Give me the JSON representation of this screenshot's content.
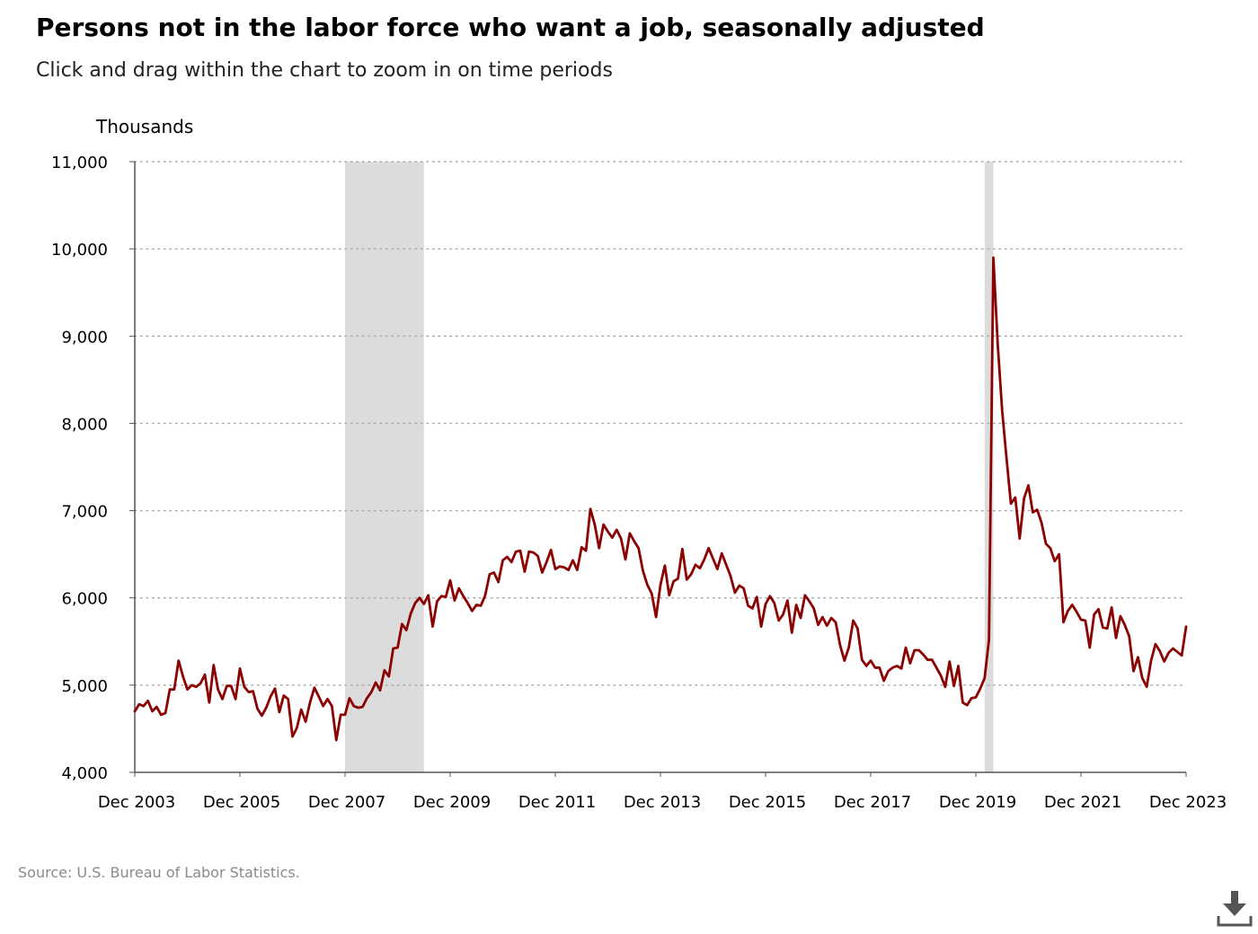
{
  "header": {
    "title": "Persons not in the labor force who want a job, seasonally adjusted",
    "subtitle": "Click and drag within the chart to zoom in on time periods"
  },
  "footer": {
    "source": "Source: U.S. Bureau of Labor Statistics."
  },
  "download_icon": "download-icon",
  "colors": {
    "line": "#8b0000",
    "recession": "#dcdcdc",
    "grid": "#aaaaaa",
    "axis": "#555555"
  },
  "chart_data": {
    "type": "line",
    "title": "Persons not in the labor force who want a job, seasonally adjusted",
    "ylabel": "Thousands",
    "xlabel": "",
    "ylim": [
      4000,
      11000
    ],
    "xlim": [
      "2003-12",
      "2023-12"
    ],
    "yticks": [
      4000,
      5000,
      6000,
      7000,
      8000,
      9000,
      10000,
      11000
    ],
    "ytick_labels": [
      "4,000",
      "5,000",
      "6,000",
      "7,000",
      "8,000",
      "9,000",
      "10,000",
      "11,000"
    ],
    "xticks": [
      "2003-12",
      "2005-12",
      "2007-12",
      "2009-12",
      "2011-12",
      "2013-12",
      "2015-12",
      "2017-12",
      "2019-12",
      "2021-12",
      "2023-12"
    ],
    "xtick_labels": [
      "Dec 2003",
      "Dec 2005",
      "Dec 2007",
      "Dec 2009",
      "Dec 2011",
      "Dec 2013",
      "Dec 2015",
      "Dec 2017",
      "Dec 2019",
      "Dec 2021",
      "Dec 2023"
    ],
    "grid": true,
    "recessions": [
      {
        "start": "2007-12",
        "end": "2009-06"
      },
      {
        "start": "2020-02",
        "end": "2020-04"
      }
    ],
    "series": [
      {
        "start": "2003-12",
        "frequency": "monthly",
        "values": [
          4700,
          4780,
          4760,
          4820,
          4700,
          4750,
          4660,
          4680,
          4950,
          4950,
          5280,
          5100,
          4950,
          5000,
          4980,
          5020,
          5120,
          4800,
          5230,
          4950,
          4840,
          4990,
          4990,
          4840,
          5190,
          4980,
          4920,
          4930,
          4730,
          4650,
          4740,
          4870,
          4960,
          4690,
          4880,
          4840,
          4410,
          4510,
          4720,
          4580,
          4800,
          4970,
          4870,
          4760,
          4840,
          4760,
          4370,
          4660,
          4660,
          4850,
          4760,
          4740,
          4750,
          4850,
          4920,
          5030,
          4940,
          5170,
          5100,
          5420,
          5430,
          5700,
          5630,
          5820,
          5940,
          6000,
          5930,
          6030,
          5670,
          5960,
          6020,
          6010,
          6200,
          5970,
          6110,
          6020,
          5940,
          5850,
          5920,
          5910,
          6030,
          6270,
          6290,
          6180,
          6430,
          6470,
          6410,
          6530,
          6540,
          6300,
          6530,
          6520,
          6480,
          6290,
          6410,
          6550,
          6330,
          6360,
          6350,
          6320,
          6430,
          6320,
          6580,
          6540,
          7020,
          6840,
          6570,
          6840,
          6760,
          6690,
          6780,
          6680,
          6440,
          6740,
          6650,
          6570,
          6310,
          6150,
          6050,
          5780,
          6150,
          6370,
          6030,
          6190,
          6220,
          6560,
          6210,
          6270,
          6380,
          6340,
          6440,
          6570,
          6450,
          6330,
          6510,
          6380,
          6250,
          6060,
          6140,
          6110,
          5910,
          5880,
          6010,
          5670,
          5930,
          6020,
          5940,
          5740,
          5810,
          5970,
          5600,
          5920,
          5770,
          6030,
          5960,
          5880,
          5690,
          5780,
          5680,
          5770,
          5720,
          5460,
          5280,
          5430,
          5740,
          5650,
          5290,
          5220,
          5280,
          5200,
          5200,
          5050,
          5160,
          5200,
          5220,
          5190,
          5430,
          5250,
          5400,
          5400,
          5350,
          5290,
          5290,
          5200,
          5110,
          4980,
          5270,
          4990,
          5220,
          4800,
          4770,
          4850,
          4860,
          4960,
          5080,
          5520,
          9900,
          8900,
          8150,
          7600,
          7080,
          7150,
          6680,
          7140,
          7290,
          6980,
          7010,
          6860,
          6620,
          6570,
          6420,
          6500,
          5720,
          5850,
          5920,
          5840,
          5750,
          5740,
          5430,
          5810,
          5870,
          5660,
          5650,
          5890,
          5540,
          5790,
          5690,
          5560,
          5160,
          5320,
          5080,
          4980,
          5280,
          5470,
          5390,
          5270,
          5370,
          5420,
          5380,
          5340,
          5670
        ]
      }
    ]
  }
}
